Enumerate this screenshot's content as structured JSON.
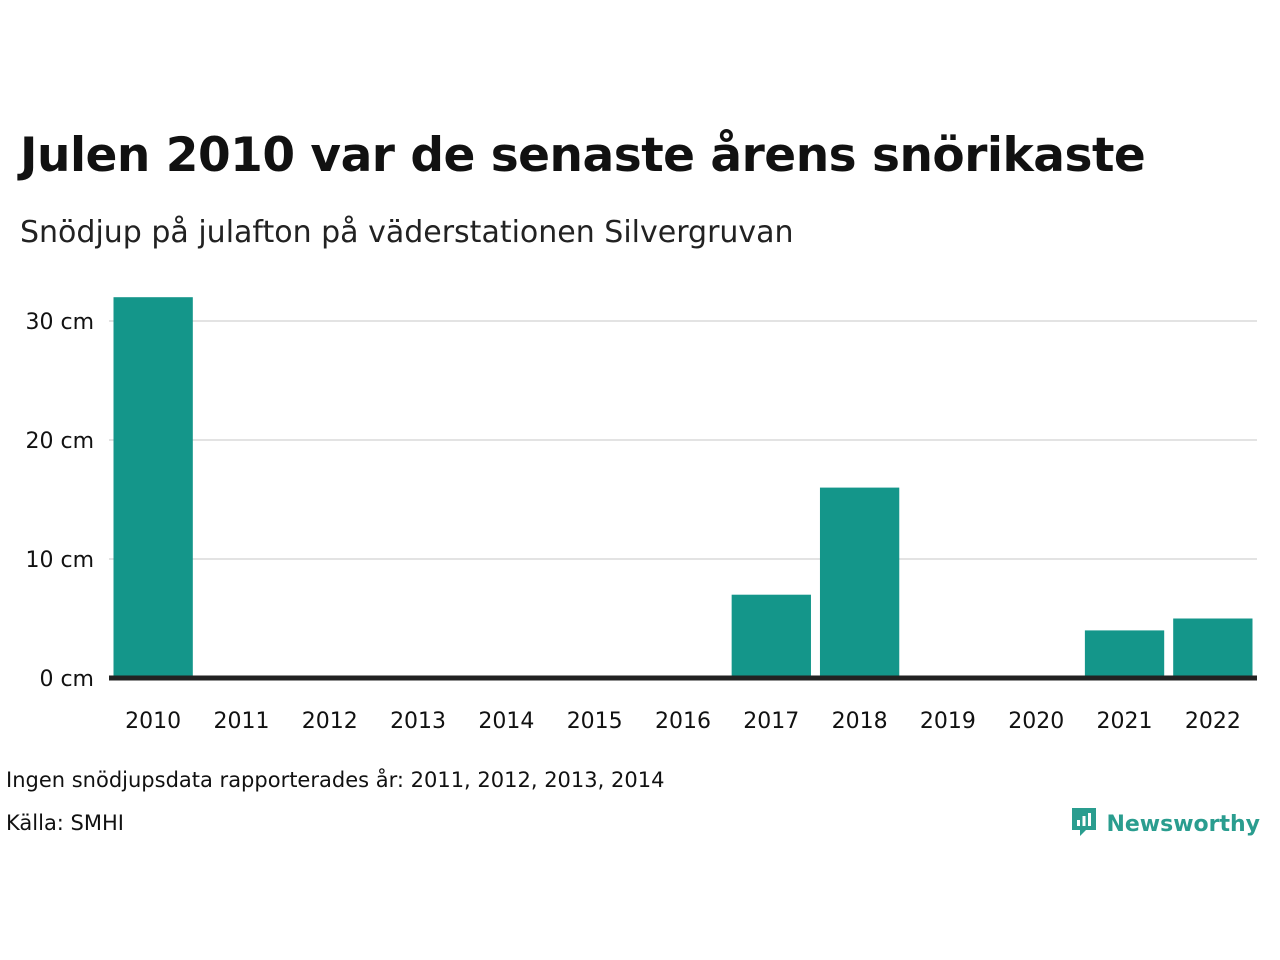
{
  "title": "Julen 2010 var de senaste årens snörikaste",
  "subtitle": "Snödjup på julafton på väderstationen Silvergruvan",
  "footnote": "Ingen snödjupsdata rapporterades år: 2011, 2012, 2013, 2014",
  "source": "Källa: SMHI",
  "brand": {
    "name": "Newsworthy",
    "icon": "newsworthy-logo-icon"
  },
  "colors": {
    "bar": "#14968a",
    "grid": "#e3e3e3",
    "baseline": "#222222",
    "brand": "#2a9d8f"
  },
  "chart_data": {
    "type": "bar",
    "categories": [
      "2010",
      "2011",
      "2012",
      "2013",
      "2014",
      "2015",
      "2016",
      "2017",
      "2018",
      "2019",
      "2020",
      "2021",
      "2022"
    ],
    "values": [
      32,
      null,
      null,
      null,
      null,
      0,
      0,
      7,
      16,
      0,
      0,
      4,
      5
    ],
    "yticks": [
      0,
      10,
      20,
      30
    ],
    "ytick_labels": [
      "0 cm",
      "10 cm",
      "20 cm",
      "30 cm"
    ],
    "ylim": [
      0,
      32
    ],
    "grid": true,
    "title": "Julen 2010 var de senaste årens snörikaste",
    "xlabel": "",
    "ylabel": ""
  }
}
